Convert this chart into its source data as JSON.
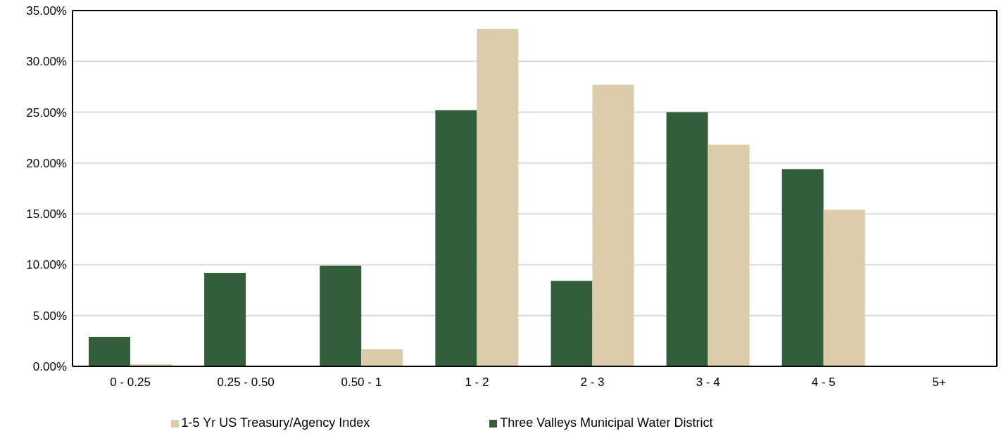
{
  "chart_data": {
    "type": "bar",
    "categories": [
      "0 - 0.25",
      "0.25 - 0.50",
      "0.50 - 1",
      "1 - 2",
      "2 - 3",
      "3 - 4",
      "4 - 5",
      "5+"
    ],
    "series": [
      {
        "name": "Three Valleys Municipal Water District",
        "color": "#335e3c",
        "values": [
          2.9,
          9.2,
          9.9,
          25.2,
          8.4,
          25.0,
          19.4,
          0
        ]
      },
      {
        "name": "1-5 Yr US Treasury/Agency Index",
        "color": "#ddcca9",
        "values": [
          0.2,
          0,
          1.7,
          33.2,
          27.7,
          21.8,
          15.4,
          0
        ]
      }
    ],
    "ylim": [
      0,
      35
    ],
    "yticks": [
      {
        "value": 0,
        "label": "0.00%"
      },
      {
        "value": 5,
        "label": "5.00%"
      },
      {
        "value": 10,
        "label": "10.00%"
      },
      {
        "value": 15,
        "label": "15.00%"
      },
      {
        "value": 20,
        "label": "20.00%"
      },
      {
        "value": 25,
        "label": "25.00%"
      },
      {
        "value": 30,
        "label": "30.00%"
      },
      {
        "value": 35,
        "label": "35.00%"
      }
    ],
    "grid": "y",
    "legend": "bottom"
  }
}
